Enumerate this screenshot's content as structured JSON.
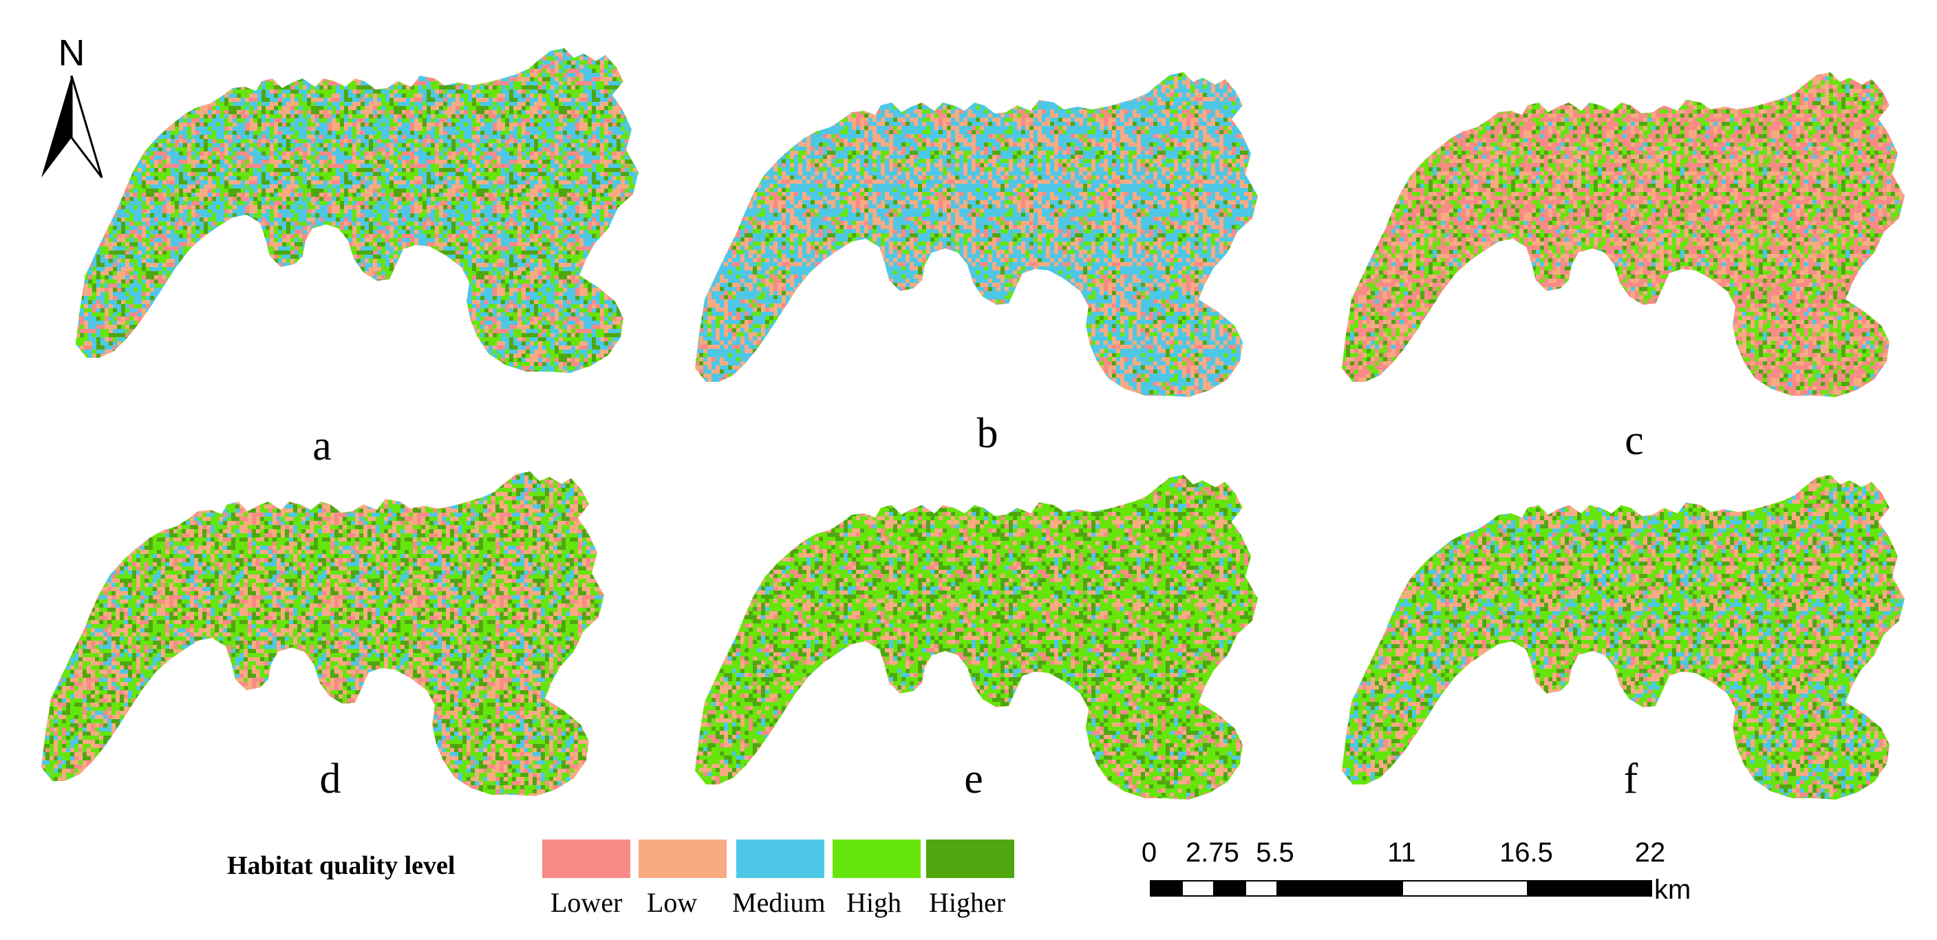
{
  "north_arrow": {
    "label": "N",
    "icon": "north-arrow-icon"
  },
  "panels": [
    {
      "label": "a",
      "dominant": "mixed",
      "weights": {
        "Lower": 0.12,
        "Low": 0.18,
        "Medium": 0.34,
        "High": 0.24,
        "Higher": 0.12
      }
    },
    {
      "label": "b",
      "dominant": "Medium",
      "weights": {
        "Lower": 0.08,
        "Low": 0.3,
        "Medium": 0.48,
        "High": 0.09,
        "Higher": 0.05
      }
    },
    {
      "label": "c",
      "dominant": "Lower",
      "weights": {
        "Lower": 0.38,
        "Low": 0.22,
        "Medium": 0.05,
        "High": 0.23,
        "Higher": 0.12
      }
    },
    {
      "label": "d",
      "dominant": "mixed",
      "weights": {
        "Lower": 0.1,
        "Low": 0.28,
        "Medium": 0.12,
        "High": 0.32,
        "Higher": 0.18
      }
    },
    {
      "label": "e",
      "dominant": "High",
      "weights": {
        "Lower": 0.08,
        "Low": 0.18,
        "Medium": 0.07,
        "High": 0.47,
        "Higher": 0.2
      }
    },
    {
      "label": "f",
      "dominant": "High",
      "weights": {
        "Lower": 0.1,
        "Low": 0.25,
        "Medium": 0.16,
        "High": 0.34,
        "Higher": 0.15
      }
    }
  ],
  "legend": {
    "title": "Habitat quality level",
    "items": [
      {
        "label": "Lower",
        "color": "#F88A87"
      },
      {
        "label": "Low",
        "color": "#F8AA83"
      },
      {
        "label": "Medium",
        "color": "#4EC7E6"
      },
      {
        "label": "High",
        "color": "#66E50D"
      },
      {
        "label": "Higher",
        "color": "#4FA710"
      }
    ]
  },
  "scale_bar": {
    "unit": "km",
    "ticks": [
      "0",
      "2.75",
      "5.5",
      "11",
      "16.5",
      "22"
    ]
  }
}
